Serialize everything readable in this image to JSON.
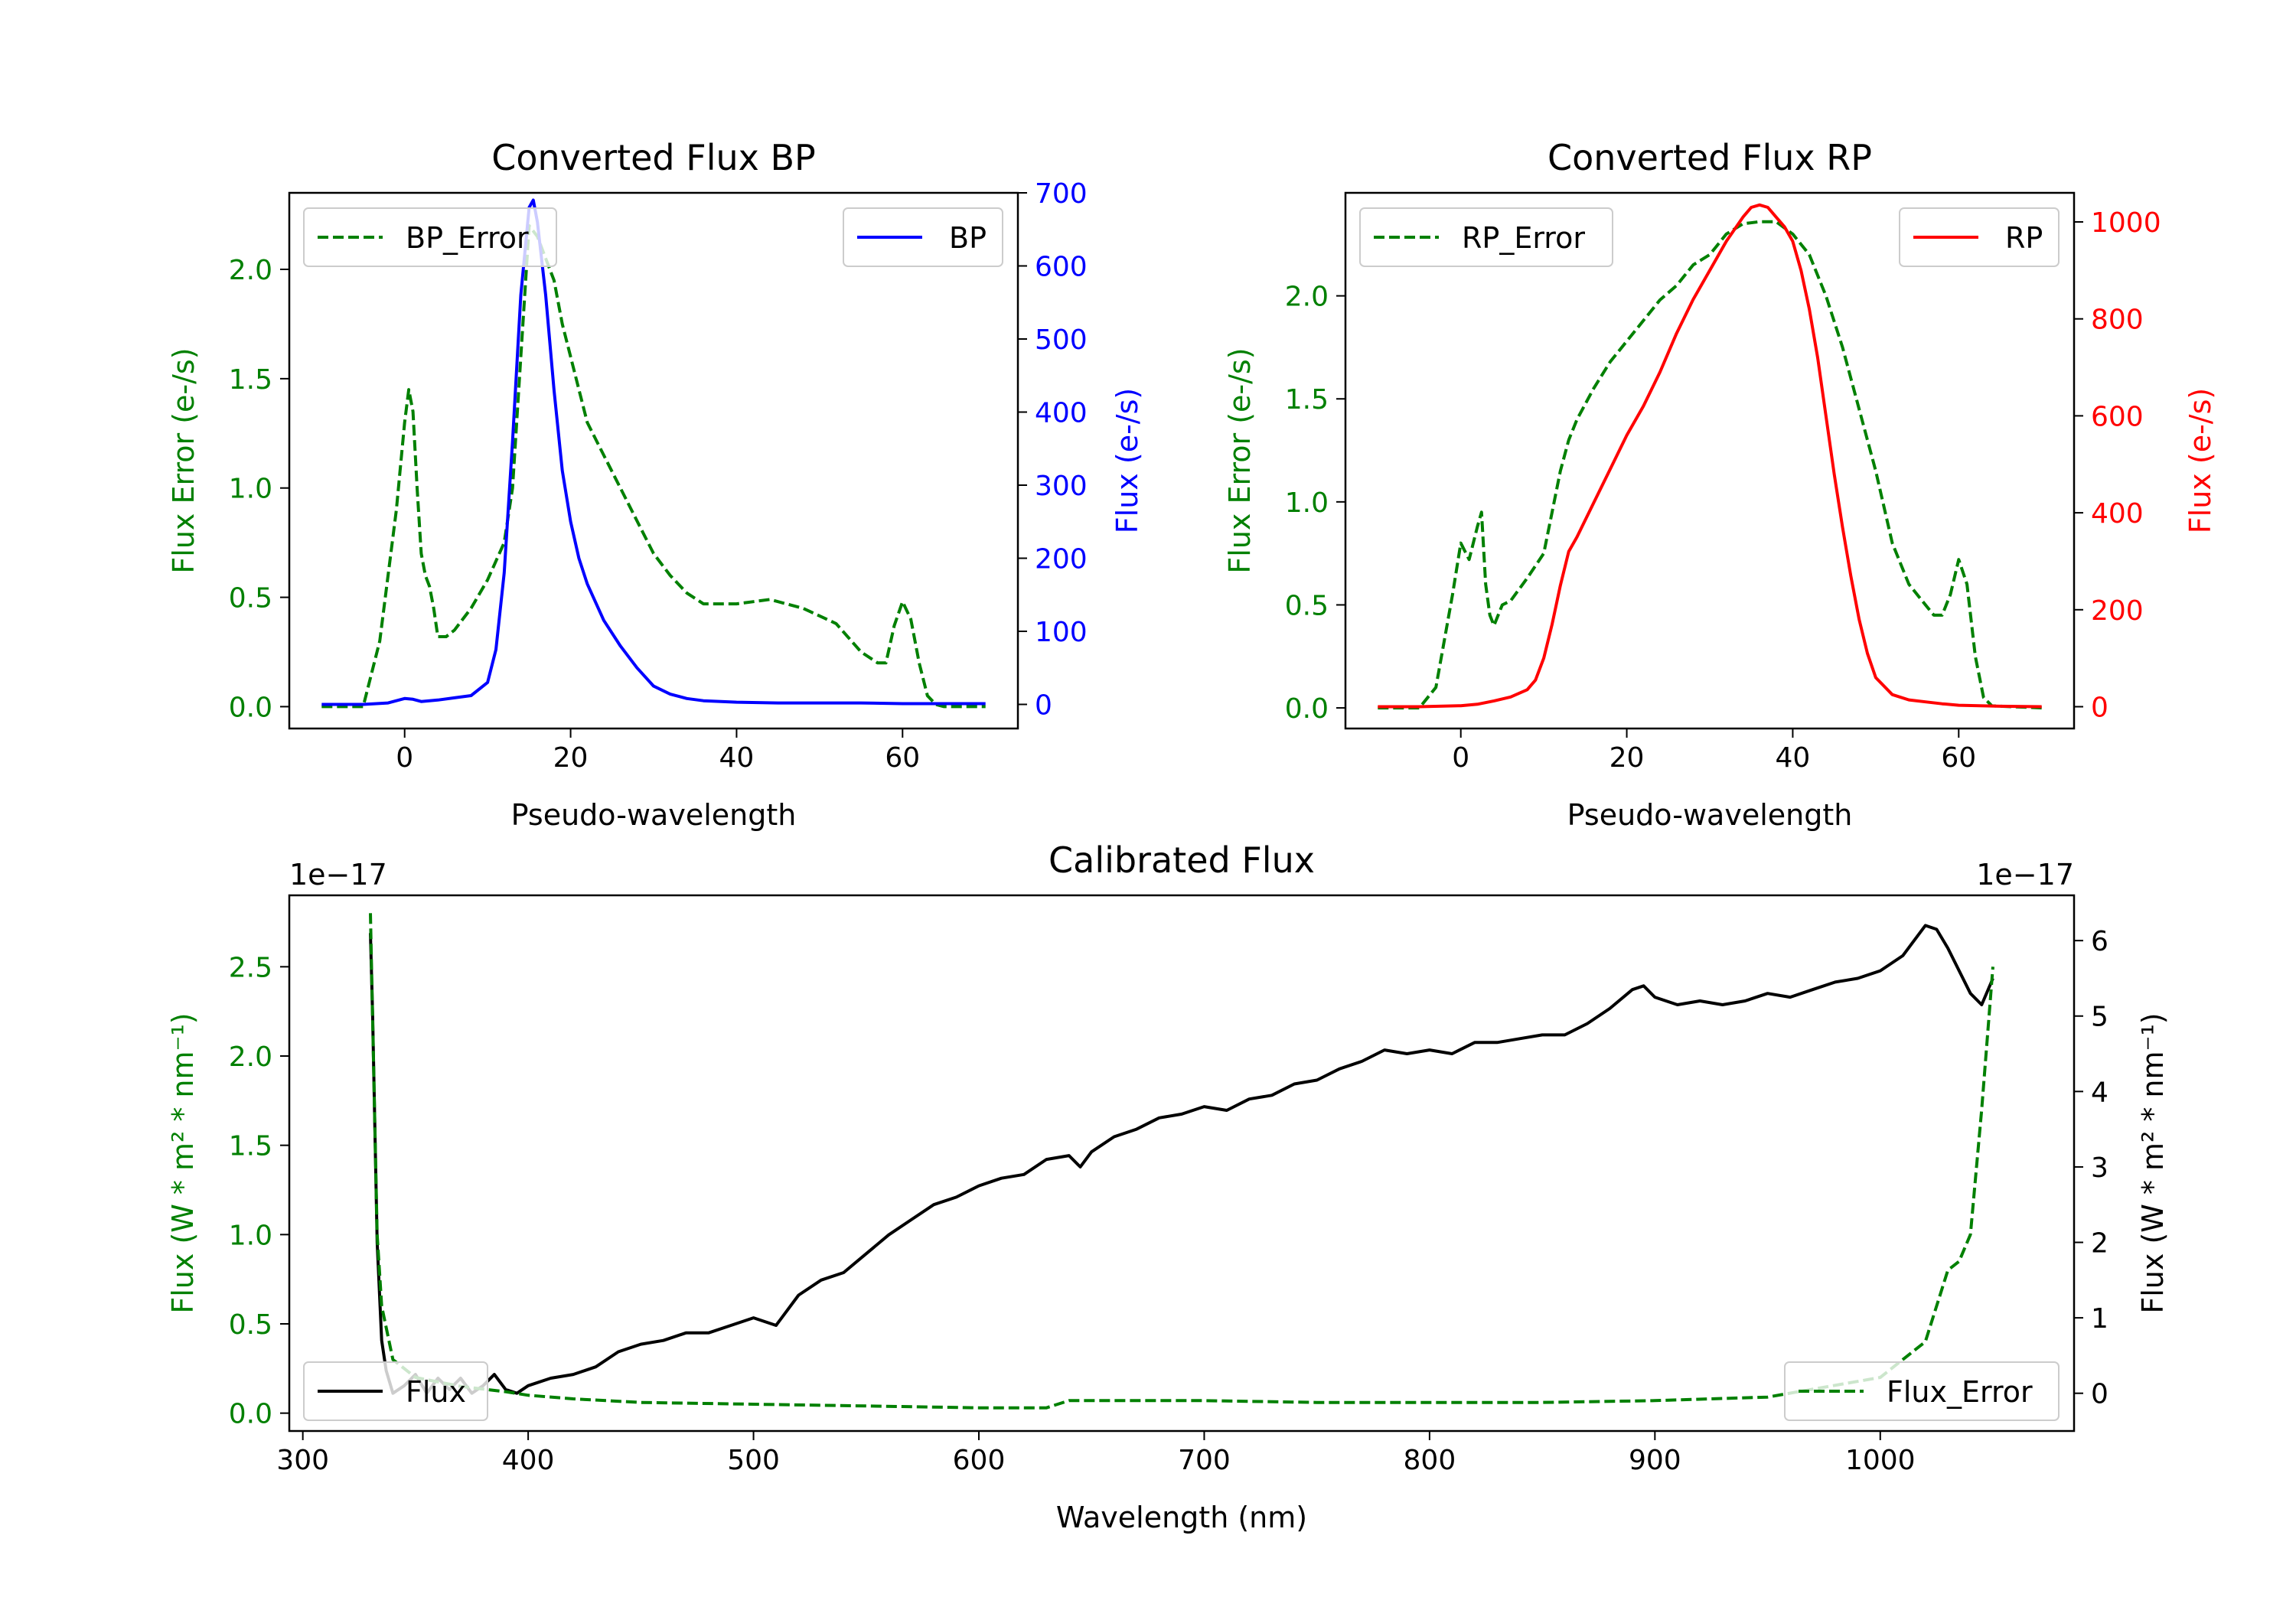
{
  "colors": {
    "error": "#008000",
    "bp": "#0000ff",
    "rp": "#ff0000",
    "flux": "#000000",
    "axis": "#000000"
  },
  "chart_data": [
    {
      "id": "bp",
      "type": "line",
      "title": "Converted Flux BP",
      "xlabel": "Pseudo-wavelength",
      "ylabel_left": "Flux Error (e-/s)",
      "ylabel_right": "Flux (e-/s)",
      "xlim": [
        -13.9,
        73.9
      ],
      "ylim_left": [
        -0.1,
        2.35
      ],
      "ylim_right": [
        -33,
        700
      ],
      "x_ticks": [
        0,
        20,
        40,
        60
      ],
      "x_tick_labels": [
        "0",
        "20",
        "40",
        "60"
      ],
      "y_left_ticks": [
        0.0,
        0.5,
        1.0,
        1.5,
        2.0
      ],
      "y_left_tick_labels": [
        "0.0",
        "0.5",
        "1.0",
        "1.5",
        "2.0"
      ],
      "y_right_ticks": [
        0,
        100,
        200,
        300,
        400,
        500,
        600,
        700
      ],
      "y_right_tick_labels": [
        "0",
        "100",
        "200",
        "300",
        "400",
        "500",
        "600",
        "700"
      ],
      "legend_left": {
        "label": "BP_Error",
        "placement": "upper left"
      },
      "legend_right": {
        "label": "BP",
        "placement": "upper right"
      },
      "series": [
        {
          "name": "BP_Error",
          "axis": "left",
          "style": "dashed",
          "color": "#008000",
          "x": [
            -10,
            -5,
            -3,
            -1,
            0,
            0.5,
            1,
            1.5,
            2,
            2.5,
            3,
            3.5,
            4,
            5,
            6,
            8,
            10,
            12,
            13,
            14,
            15,
            16,
            17,
            18,
            19,
            20,
            22,
            24,
            26,
            28,
            30,
            32,
            34,
            36,
            38,
            40,
            44,
            48,
            52,
            55,
            57,
            58,
            59,
            60,
            61,
            62,
            63,
            64,
            65,
            66,
            70
          ],
          "y": [
            0.0,
            0.0,
            0.3,
            0.9,
            1.3,
            1.45,
            1.35,
            1.0,
            0.7,
            0.6,
            0.55,
            0.45,
            0.32,
            0.32,
            0.35,
            0.45,
            0.58,
            0.75,
            1.0,
            1.6,
            2.2,
            2.15,
            2.05,
            1.95,
            1.75,
            1.6,
            1.3,
            1.15,
            1.0,
            0.85,
            0.7,
            0.6,
            0.52,
            0.47,
            0.47,
            0.47,
            0.49,
            0.45,
            0.38,
            0.25,
            0.2,
            0.2,
            0.37,
            0.48,
            0.4,
            0.2,
            0.05,
            0.01,
            0.0,
            0.0,
            0.0
          ]
        },
        {
          "name": "BP",
          "axis": "right",
          "style": "solid",
          "color": "#0000ff",
          "x": [
            -10,
            -5,
            -2,
            0,
            1,
            2,
            4,
            6,
            8,
            10,
            11,
            12,
            13,
            14,
            15,
            15.5,
            16,
            17,
            18,
            19,
            20,
            21,
            22,
            23,
            24,
            26,
            28,
            30,
            32,
            34,
            36,
            40,
            45,
            50,
            55,
            60,
            65,
            70
          ],
          "y": [
            0,
            0,
            2,
            8,
            7,
            4,
            6,
            9,
            12,
            30,
            75,
            180,
            360,
            560,
            680,
            690,
            660,
            560,
            430,
            320,
            250,
            200,
            165,
            140,
            115,
            80,
            50,
            25,
            14,
            8,
            5,
            3,
            2,
            2,
            2,
            1,
            1,
            1
          ]
        }
      ]
    },
    {
      "id": "rp",
      "type": "line",
      "title": "Converted Flux RP",
      "xlabel": "Pseudo-wavelength",
      "ylabel_left": "Flux Error (e-/s)",
      "ylabel_right": "Flux (e-/s)",
      "xlim": [
        -13.9,
        73.9
      ],
      "ylim_left": [
        -0.1,
        2.5
      ],
      "ylim_right": [
        -45,
        1060
      ],
      "x_ticks": [
        0,
        20,
        40,
        60
      ],
      "x_tick_labels": [
        "0",
        "20",
        "40",
        "60"
      ],
      "y_left_ticks": [
        0.0,
        0.5,
        1.0,
        1.5,
        2.0
      ],
      "y_left_tick_labels": [
        "0.0",
        "0.5",
        "1.0",
        "1.5",
        "2.0"
      ],
      "y_right_ticks": [
        0,
        200,
        400,
        600,
        800,
        1000
      ],
      "y_right_tick_labels": [
        "0",
        "200",
        "400",
        "600",
        "800",
        "1000"
      ],
      "legend_left": {
        "label": "RP_Error",
        "placement": "upper left"
      },
      "legend_right": {
        "label": "RP",
        "placement": "upper right"
      },
      "series": [
        {
          "name": "RP_Error",
          "axis": "left",
          "style": "dashed",
          "color": "#008000",
          "x": [
            -10,
            -5,
            -3,
            -1,
            0,
            1,
            2,
            2.5,
            3,
            3.5,
            4,
            5,
            6,
            8,
            10,
            11,
            12,
            13,
            14,
            16,
            18,
            20,
            22,
            24,
            26,
            28,
            30,
            32,
            34,
            36,
            38,
            40,
            42,
            44,
            46,
            48,
            50,
            52,
            54,
            56,
            57,
            58,
            59,
            60,
            61,
            62,
            63,
            64,
            70
          ],
          "y": [
            0.0,
            0.0,
            0.1,
            0.55,
            0.8,
            0.72,
            0.88,
            0.95,
            0.6,
            0.45,
            0.4,
            0.5,
            0.52,
            0.63,
            0.75,
            0.95,
            1.15,
            1.3,
            1.4,
            1.55,
            1.68,
            1.78,
            1.88,
            1.98,
            2.05,
            2.15,
            2.2,
            2.3,
            2.35,
            2.36,
            2.36,
            2.3,
            2.2,
            2.0,
            1.75,
            1.45,
            1.15,
            0.8,
            0.6,
            0.5,
            0.45,
            0.45,
            0.55,
            0.72,
            0.6,
            0.25,
            0.05,
            0.01,
            0.0
          ]
        },
        {
          "name": "RP",
          "axis": "right",
          "style": "solid",
          "color": "#ff0000",
          "x": [
            -10,
            -5,
            0,
            2,
            4,
            6,
            8,
            9,
            10,
            11,
            12,
            13,
            14,
            16,
            18,
            20,
            22,
            24,
            26,
            28,
            30,
            32,
            34,
            35,
            36,
            37,
            38,
            39,
            40,
            41,
            42,
            43,
            44,
            45,
            46,
            47,
            48,
            49,
            50,
            52,
            54,
            56,
            58,
            60,
            65,
            70
          ],
          "y": [
            0,
            0,
            2,
            5,
            12,
            20,
            35,
            55,
            100,
            170,
            250,
            320,
            350,
            420,
            490,
            560,
            620,
            690,
            770,
            840,
            900,
            960,
            1010,
            1030,
            1035,
            1030,
            1010,
            990,
            960,
            900,
            820,
            720,
            600,
            480,
            370,
            270,
            180,
            110,
            60,
            25,
            14,
            10,
            6,
            3,
            1,
            0
          ]
        }
      ]
    },
    {
      "id": "calibrated",
      "type": "line",
      "title": "Calibrated Flux",
      "xlabel": "Wavelength (nm)",
      "ylabel_left": "Flux (W * m² * nm⁻¹)",
      "ylabel_right": "Flux (W * m² * nm⁻¹)",
      "offset_left": "1e−17",
      "offset_right": "1e−17",
      "xlim": [
        294,
        1086
      ],
      "ylim_left": [
        -0.1,
        2.9
      ],
      "ylim_right": [
        -0.5,
        6.6
      ],
      "x_ticks": [
        300,
        400,
        500,
        600,
        700,
        800,
        900,
        1000
      ],
      "x_tick_labels": [
        "300",
        "400",
        "500",
        "600",
        "700",
        "800",
        "900",
        "1000"
      ],
      "y_left_ticks": [
        0.0,
        0.5,
        1.0,
        1.5,
        2.0,
        2.5
      ],
      "y_left_tick_labels": [
        "0.0",
        "0.5",
        "1.0",
        "1.5",
        "2.0",
        "2.5"
      ],
      "y_right_ticks": [
        0,
        1,
        2,
        3,
        4,
        5,
        6
      ],
      "y_right_tick_labels": [
        "0",
        "1",
        "2",
        "3",
        "4",
        "5",
        "6"
      ],
      "legend_left": {
        "label": "Flux",
        "placement": "lower left"
      },
      "legend_right": {
        "label": "Flux_Error",
        "placement": "lower right"
      },
      "series": [
        {
          "name": "Flux",
          "axis": "right",
          "style": "solid",
          "color": "#000000",
          "x": [
            330,
            331,
            333,
            335,
            337,
            340,
            345,
            350,
            355,
            360,
            365,
            370,
            375,
            380,
            385,
            390,
            395,
            400,
            410,
            420,
            430,
            440,
            450,
            460,
            470,
            480,
            490,
            500,
            510,
            520,
            530,
            540,
            550,
            560,
            570,
            580,
            590,
            600,
            610,
            620,
            630,
            640,
            645,
            650,
            660,
            670,
            680,
            690,
            700,
            710,
            720,
            730,
            740,
            750,
            760,
            770,
            780,
            790,
            800,
            810,
            820,
            830,
            840,
            850,
            860,
            870,
            880,
            890,
            895,
            900,
            910,
            920,
            930,
            940,
            950,
            960,
            970,
            980,
            990,
            1000,
            1010,
            1020,
            1025,
            1030,
            1040,
            1045,
            1050
          ],
          "y": [
            6.1,
            5.0,
            2.0,
            0.7,
            0.3,
            0.0,
            0.1,
            0.25,
            0.0,
            0.2,
            0.05,
            0.2,
            0.0,
            0.1,
            0.25,
            0.05,
            0.0,
            0.1,
            0.2,
            0.25,
            0.35,
            0.55,
            0.65,
            0.7,
            0.8,
            0.8,
            0.9,
            1.0,
            0.9,
            1.3,
            1.5,
            1.6,
            1.85,
            2.1,
            2.3,
            2.5,
            2.6,
            2.75,
            2.85,
            2.9,
            3.1,
            3.15,
            3.0,
            3.2,
            3.4,
            3.5,
            3.65,
            3.7,
            3.8,
            3.75,
            3.9,
            3.95,
            4.1,
            4.15,
            4.3,
            4.4,
            4.55,
            4.5,
            4.55,
            4.5,
            4.65,
            4.65,
            4.7,
            4.75,
            4.75,
            4.9,
            5.1,
            5.35,
            5.4,
            5.25,
            5.15,
            5.2,
            5.15,
            5.2,
            5.3,
            5.25,
            5.35,
            5.45,
            5.5,
            5.6,
            5.8,
            6.2,
            6.15,
            5.9,
            5.3,
            5.15,
            5.5
          ]
        },
        {
          "name": "Flux_Error",
          "axis": "left",
          "style": "dashed",
          "color": "#008000",
          "x": [
            330,
            331,
            333,
            335,
            340,
            350,
            370,
            390,
            400,
            420,
            450,
            500,
            550,
            600,
            630,
            640,
            650,
            700,
            750,
            800,
            850,
            900,
            950,
            1000,
            1010,
            1020,
            1025,
            1030,
            1035,
            1040,
            1045,
            1050
          ],
          "y": [
            2.8,
            2.2,
            1.0,
            0.6,
            0.3,
            0.2,
            0.15,
            0.12,
            0.1,
            0.08,
            0.06,
            0.05,
            0.04,
            0.03,
            0.03,
            0.07,
            0.07,
            0.07,
            0.06,
            0.06,
            0.06,
            0.07,
            0.09,
            0.2,
            0.3,
            0.4,
            0.6,
            0.8,
            0.85,
            1.0,
            1.7,
            2.5
          ]
        }
      ]
    }
  ]
}
